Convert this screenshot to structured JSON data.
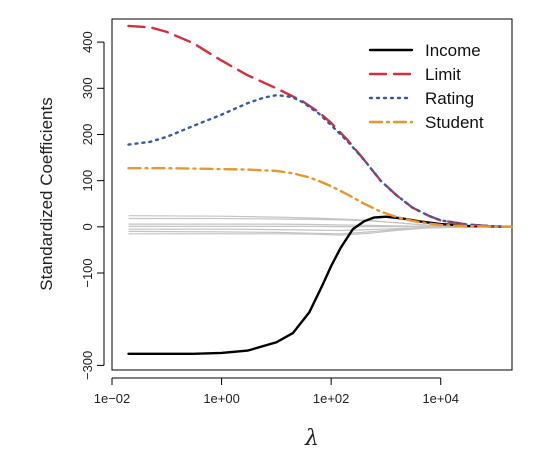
{
  "chart_data": {
    "type": "line",
    "title": "",
    "xlabel": "λ",
    "ylabel": "Standardized Coefficients",
    "x_scale": "log10",
    "xlim": [
      0.01,
      200000
    ],
    "ylim": [
      -310,
      450
    ],
    "x_ticks": [
      0.01,
      1,
      100,
      10000
    ],
    "x_tick_labels": [
      "1e−02",
      "1e+00",
      "1e+02",
      "1e+04"
    ],
    "y_ticks": [
      -300,
      -100,
      0,
      100,
      200,
      300,
      400
    ],
    "y_tick_labels": [
      "−300",
      "−100",
      "0",
      "100",
      "200",
      "300",
      "400"
    ],
    "legend_position": "top-right",
    "grid": false,
    "series": [
      {
        "name": "Income",
        "color": "#000000",
        "dash": "solid",
        "x": [
          0.02,
          0.1,
          0.3,
          1,
          3,
          10,
          20,
          40,
          70,
          100,
          150,
          250,
          400,
          600,
          1000,
          2000,
          4000,
          10000,
          30000,
          100000,
          200000
        ],
        "y": [
          -275,
          -275,
          -275,
          -273,
          -268,
          -250,
          -230,
          -185,
          -125,
          -85,
          -45,
          -5,
          12,
          20,
          22,
          18,
          12,
          6,
          2,
          0.5,
          0
        ]
      },
      {
        "name": "Limit",
        "color": "#d62f3c",
        "dash": "long",
        "x": [
          0.02,
          0.05,
          0.1,
          0.3,
          1,
          3,
          10,
          30,
          60,
          100,
          200,
          400,
          800,
          1500,
          3000,
          6000,
          10000,
          30000,
          100000,
          200000
        ],
        "y": [
          435,
          432,
          422,
          398,
          360,
          328,
          300,
          272,
          248,
          225,
          188,
          145,
          100,
          70,
          42,
          24,
          14,
          5,
          1,
          0
        ]
      },
      {
        "name": "Rating",
        "color": "#3a5aa8",
        "dash": "dotted",
        "x": [
          0.02,
          0.05,
          0.1,
          0.3,
          1,
          3,
          6,
          10,
          15,
          20,
          30,
          60,
          100,
          200,
          400,
          800,
          1500,
          3000,
          6000,
          10000,
          30000,
          100000,
          200000
        ],
        "y": [
          178,
          184,
          195,
          218,
          243,
          268,
          280,
          285,
          283,
          280,
          270,
          245,
          220,
          185,
          145,
          100,
          70,
          42,
          24,
          14,
          5,
          1,
          0
        ]
      },
      {
        "name": "Student",
        "color": "#e8962e",
        "dash": "dashdot",
        "x": [
          0.02,
          0.1,
          0.3,
          1,
          3,
          10,
          20,
          40,
          70,
          100,
          200,
          400,
          800,
          1500,
          3000,
          6000,
          10000,
          30000,
          100000,
          200000
        ],
        "y": [
          127,
          127,
          126,
          125,
          124,
          121,
          116,
          107,
          96,
          88,
          70,
          50,
          33,
          22,
          13,
          7,
          4,
          1.5,
          0.3,
          0
        ]
      },
      {
        "color": "#c4c4c4",
        "dash": "solid",
        "x": [
          0.02,
          1,
          10,
          50,
          150,
          500,
          1500,
          5000,
          20000,
          200000
        ],
        "y": [
          24,
          23,
          21,
          19,
          17,
          14,
          9,
          4,
          1,
          0
        ]
      },
      {
        "color": "#c4c4c4",
        "dash": "solid",
        "x": [
          0.02,
          1,
          10,
          50,
          150,
          500,
          1500,
          5000,
          20000,
          200000
        ],
        "y": [
          18,
          18,
          17,
          16,
          15,
          13,
          9,
          4,
          1,
          0
        ]
      },
      {
        "color": "#c4c4c4",
        "dash": "solid",
        "x": [
          0.02,
          1,
          10,
          50,
          150,
          500,
          1500,
          5000,
          20000,
          200000
        ],
        "y": [
          6,
          6,
          6,
          5,
          4,
          3,
          2,
          1,
          0.3,
          0
        ]
      },
      {
        "color": "#c4c4c4",
        "dash": "solid",
        "x": [
          0.02,
          1,
          10,
          50,
          150,
          500,
          1500,
          5000,
          20000,
          200000
        ],
        "y": [
          1,
          1,
          1,
          1,
          0.5,
          0.5,
          0.3,
          0.1,
          0,
          0
        ]
      },
      {
        "color": "#c4c4c4",
        "dash": "solid",
        "x": [
          0.02,
          1,
          10,
          50,
          150,
          500,
          1500,
          5000,
          20000,
          200000
        ],
        "y": [
          -5,
          -5,
          -6,
          -7,
          -8,
          -6,
          -4,
          -2,
          -0.5,
          0
        ]
      },
      {
        "color": "#c4c4c4",
        "dash": "solid",
        "x": [
          0.02,
          1,
          10,
          50,
          150,
          500,
          1500,
          5000,
          20000,
          200000
        ],
        "y": [
          -10,
          -11,
          -12,
          -14,
          -15,
          -11,
          -6,
          -2,
          -0.5,
          0
        ]
      },
      {
        "color": "#c4c4c4",
        "dash": "solid",
        "x": [
          0.02,
          1,
          10,
          50,
          150,
          500,
          1500,
          5000,
          20000,
          200000
        ],
        "y": [
          -15,
          -15,
          -15,
          -16,
          -18,
          -14,
          -8,
          -3,
          -1,
          0
        ]
      }
    ]
  }
}
